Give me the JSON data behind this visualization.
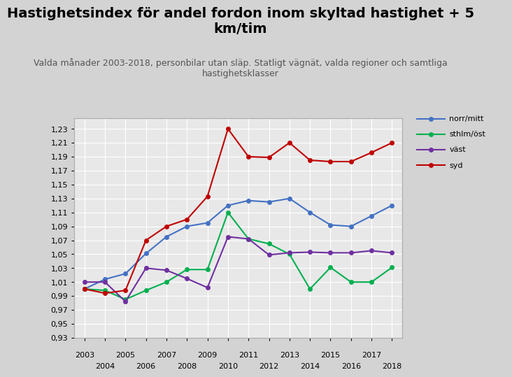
{
  "title": "Hastighetsindex för andel fordon inom skyltad hastighet + 5\nkm/tim",
  "subtitle": "Valda månader 2003-2018, personbilar utan släp. Statligt vägnät, valda regioner och samtliga\nhastighetsklasser",
  "years": [
    2003,
    2004,
    2005,
    2006,
    2007,
    2008,
    2009,
    2010,
    2011,
    2012,
    2013,
    2014,
    2015,
    2016,
    2017,
    2018
  ],
  "norr_mitt": [
    1.0,
    1.014,
    1.022,
    1.051,
    1.075,
    1.09,
    1.095,
    1.12,
    1.127,
    1.125,
    1.13,
    1.11,
    1.092,
    1.09,
    1.105,
    1.12
  ],
  "sthlm_ost": [
    1.0,
    0.998,
    0.985,
    0.998,
    1.01,
    1.028,
    1.028,
    1.11,
    1.072,
    1.065,
    1.05,
    1.0,
    1.031,
    1.01,
    1.01,
    1.031
  ],
  "vast": [
    1.01,
    1.01,
    0.982,
    1.03,
    1.027,
    1.015,
    1.002,
    1.075,
    1.072,
    1.049,
    1.052,
    1.053,
    1.052,
    1.052,
    1.055,
    1.052
  ],
  "syd": [
    1.0,
    0.994,
    0.998,
    1.07,
    1.09,
    1.1,
    1.133,
    1.23,
    1.19,
    1.189,
    1.21,
    1.185,
    1.183,
    1.183,
    1.196,
    1.21
  ],
  "norr_mitt_color": "#4472C4",
  "sthlm_ost_color": "#00B050",
  "vast_color": "#7030A0",
  "syd_color": "#C00000",
  "fig_bg_color": "#D3D3D3",
  "plot_bg_color": "#E8E8E8",
  "legend_bg_color": "#F2F2F2",
  "ylim_min": 0.93,
  "ylim_max": 1.245,
  "yticks": [
    0.93,
    0.95,
    0.97,
    0.99,
    1.01,
    1.03,
    1.05,
    1.07,
    1.09,
    1.11,
    1.13,
    1.15,
    1.17,
    1.19,
    1.21,
    1.23
  ],
  "title_fontsize": 14,
  "subtitle_fontsize": 9,
  "legend_labels": [
    "norr/mitt",
    "sthlm/öst",
    "väst",
    "syd"
  ]
}
